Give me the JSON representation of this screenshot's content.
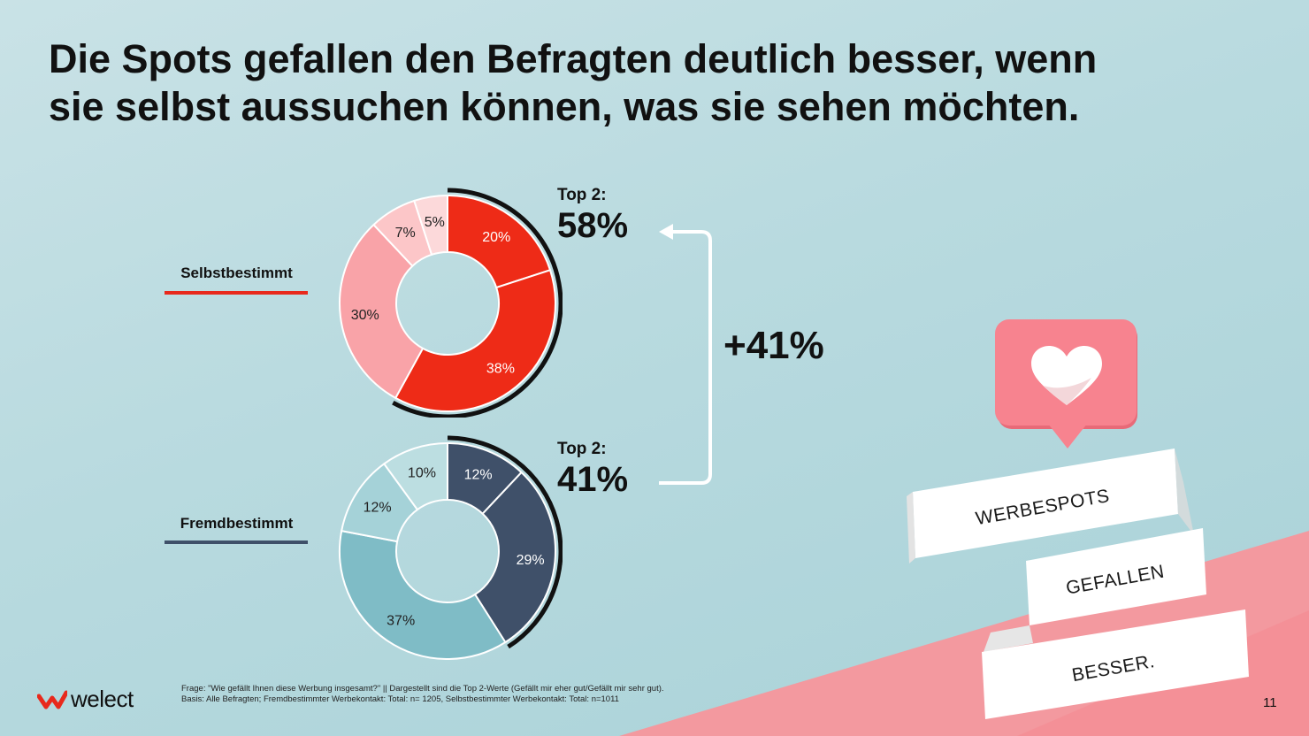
{
  "title_lines": [
    "Die Spots gefallen den Befragten deutlich besser, wenn",
    "sie selbst aussuchen können, was sie sehen möchten."
  ],
  "colors": {
    "self_series": [
      "#ee2b17",
      "#ee2b17",
      "#f9a3a8",
      "#fcc6c8",
      "#fcd9da"
    ],
    "foreign_series": [
      "#3f5069",
      "#3f5069",
      "#7fbcc6",
      "#a5d2d8",
      "#bcdee1"
    ],
    "self_line": "#e8291c",
    "foreign_line": "#3f5069",
    "accent_pink": "#f7969c"
  },
  "chart_data": [
    {
      "type": "pie",
      "variant": "donut",
      "name": "Selbstbestimmt",
      "labels": [
        "20%",
        "38%",
        "30%",
        "7%",
        "5%"
      ],
      "values": [
        20,
        38,
        30,
        7,
        5
      ],
      "top2_label": "Top 2:",
      "top2_value": "58%"
    },
    {
      "type": "pie",
      "variant": "donut",
      "name": "Fremdbestimmt",
      "labels": [
        "12%",
        "29%",
        "37%",
        "12%",
        "10%"
      ],
      "values": [
        12,
        29,
        37,
        12,
        10
      ],
      "top2_label": "Top 2:",
      "top2_value": "41%"
    }
  ],
  "difference_label": "+41%",
  "banner_words": [
    "WERBESPOTS",
    "GEFALLEN",
    "BESSER."
  ],
  "footnote_lines": [
    "Frage: \"Wie gefällt Ihnen diese Werbung insgesamt?\" || Dargestellt sind die Top 2-Werte (Gefällt mir eher gut/Gefällt mir sehr gut).",
    "Basis: Alle Befragten; Fremdbestimmter Werbekontakt: Total: n= 1205, Selbstbestimmter Werbekontakt: Total: n=1011"
  ],
  "logo_text": "welect",
  "page_number": "11",
  "icons": [
    "heart-icon",
    "welect-logo-icon",
    "arrow-icon"
  ]
}
